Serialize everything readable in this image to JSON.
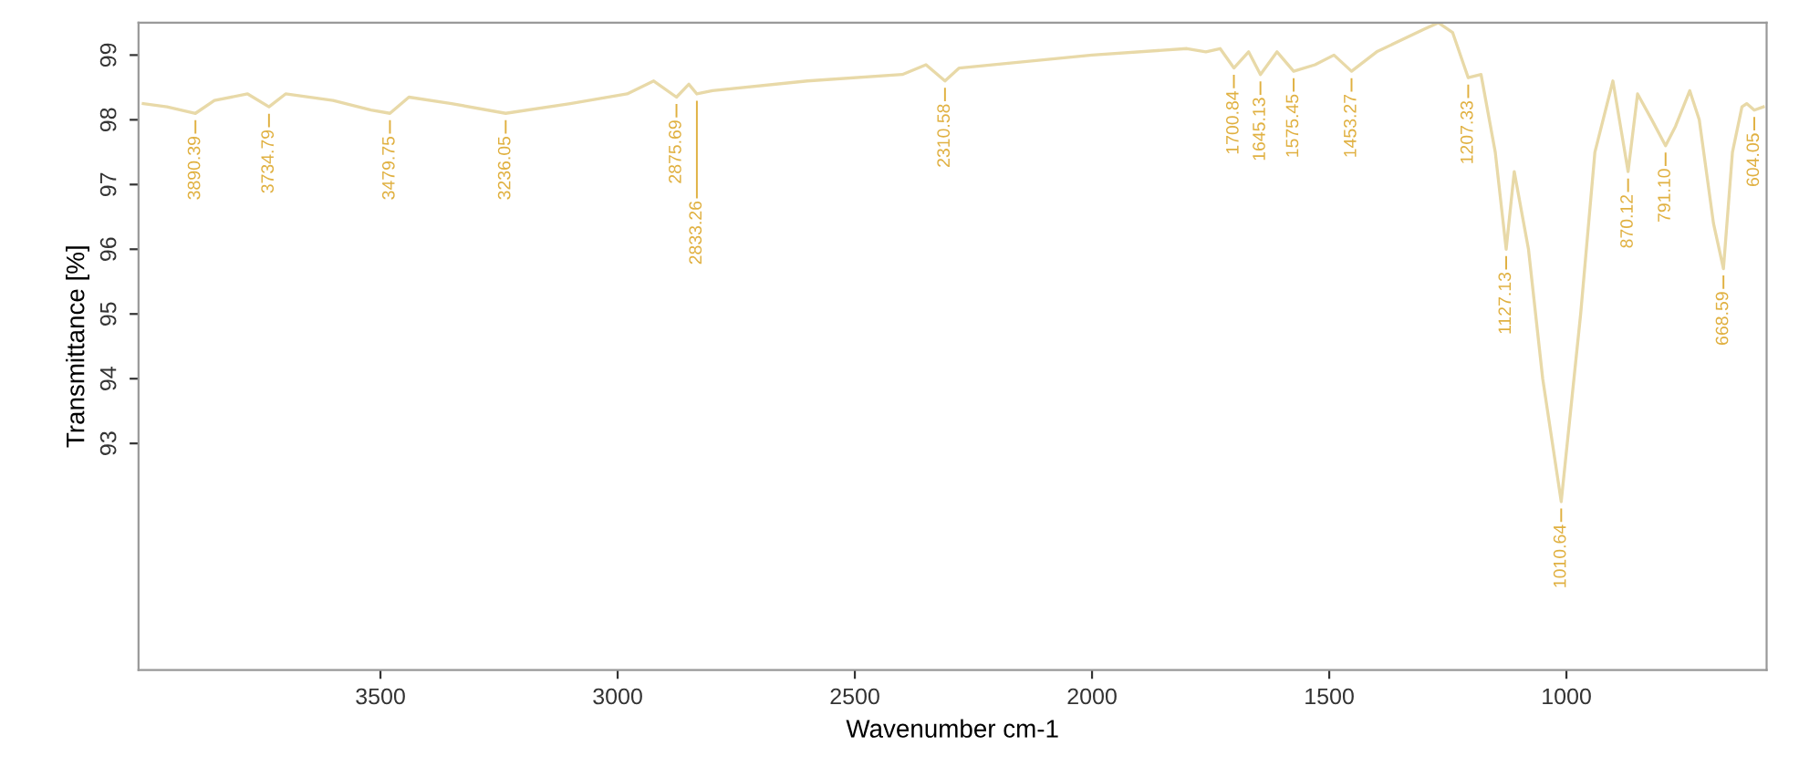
{
  "chart_data": {
    "type": "line",
    "xlabel": "Wavenumber cm-1",
    "ylabel": "Transmittance [%]",
    "xlim": [
      4010,
      578
    ],
    "ylim": [
      89.5,
      99.5
    ],
    "xticks": [
      3500,
      3000,
      2500,
      2000,
      1500,
      1000
    ],
    "yticks": [
      93,
      94,
      95,
      96,
      97,
      98,
      99
    ],
    "grid": false,
    "legend": false,
    "marker": "none",
    "line_style": "solid",
    "series": [
      {
        "color": "#e8d9a8",
        "x": [
          4000,
          3950,
          3890,
          3850,
          3780,
          3735,
          3700,
          3600,
          3520,
          3480,
          3440,
          3350,
          3236,
          3100,
          2980,
          2924,
          2876,
          2850,
          2833,
          2800,
          2600,
          2400,
          2350,
          2310,
          2280,
          2000,
          1800,
          1760,
          1730,
          1701,
          1670,
          1645,
          1610,
          1575,
          1530,
          1490,
          1453,
          1400,
          1300,
          1270,
          1240,
          1207,
          1180,
          1150,
          1127,
          1110,
          1080,
          1050,
          1011,
          970,
          940,
          902,
          870,
          850,
          820,
          791,
          770,
          740,
          720,
          690,
          669,
          650,
          630,
          620,
          604,
          585
        ],
        "values": [
          98.25,
          98.2,
          98.1,
          98.3,
          98.4,
          98.2,
          98.4,
          98.3,
          98.15,
          98.1,
          98.35,
          98.25,
          98.1,
          98.25,
          98.4,
          98.6,
          98.35,
          98.55,
          98.4,
          98.45,
          98.6,
          98.7,
          98.85,
          98.6,
          98.8,
          99.0,
          99.1,
          99.05,
          99.1,
          98.8,
          99.05,
          98.7,
          99.05,
          98.75,
          98.85,
          99.0,
          98.75,
          99.05,
          99.4,
          99.5,
          99.35,
          98.65,
          98.7,
          97.5,
          96.0,
          97.2,
          96.0,
          94.0,
          92.1,
          95.0,
          97.5,
          98.6,
          97.2,
          98.4,
          98.0,
          97.6,
          97.9,
          98.45,
          98.0,
          96.4,
          95.7,
          97.5,
          98.2,
          98.25,
          98.15,
          98.2
        ]
      }
    ],
    "annotations": [
      {
        "text": "3890.39",
        "x": 3890,
        "y": 98.1
      },
      {
        "text": "3734.79",
        "x": 3735,
        "y": 98.2
      },
      {
        "text": "3479.75",
        "x": 3480,
        "y": 98.1
      },
      {
        "text": "3236.05",
        "x": 3236,
        "y": 98.1
      },
      {
        "text": "2875.69",
        "x": 2876,
        "y": 98.35
      },
      {
        "text": "2833.26",
        "x": 2833,
        "y": 98.4
      },
      {
        "text": "2310.58",
        "x": 2310,
        "y": 98.6
      },
      {
        "text": "1700.84",
        "x": 1701,
        "y": 98.8
      },
      {
        "text": "1645.13",
        "x": 1645,
        "y": 98.7
      },
      {
        "text": "1575.45",
        "x": 1575,
        "y": 98.75
      },
      {
        "text": "1453.27",
        "x": 1453,
        "y": 98.75
      },
      {
        "text": "1207.33",
        "x": 1207,
        "y": 98.65
      },
      {
        "text": "1127.13",
        "x": 1127,
        "y": 96.0
      },
      {
        "text": "1010.64",
        "x": 1011,
        "y": 92.1
      },
      {
        "text": "870.12",
        "x": 870,
        "y": 97.2
      },
      {
        "text": "791.10",
        "x": 791,
        "y": 97.6
      },
      {
        "text": "668.59",
        "x": 669,
        "y": 95.7
      },
      {
        "text": "604.05",
        "x": 604,
        "y": 98.15
      }
    ]
  }
}
